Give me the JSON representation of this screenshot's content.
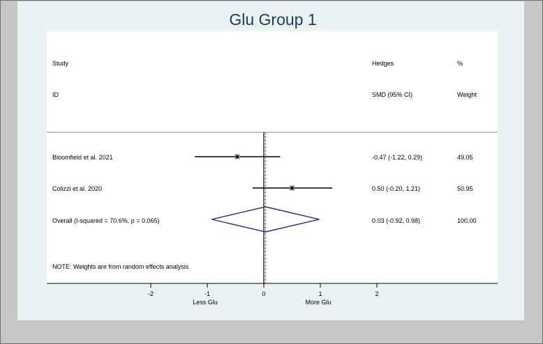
{
  "chart_data": {
    "type": "forest",
    "title": "Glu Group 1",
    "headers": {
      "study_line1": "Study",
      "study_line2": "ID",
      "effect_line1": "Hedges",
      "effect_line2": "SMD (95% CI)",
      "weight_line1": "%",
      "weight_line2": "Weight"
    },
    "studies": [
      {
        "label": "Bloomfield et al. 2021",
        "estimate": -0.47,
        "lower": -1.22,
        "upper": 0.29,
        "ci_text": "-0.47 (-1.22, 0.29)",
        "weight_text": "49.05"
      },
      {
        "label": "Colizzi et al. 2020",
        "estimate": 0.5,
        "lower": -0.2,
        "upper": 1.21,
        "ci_text": "0.50 (-0.20, 1.21)",
        "weight_text": "50.95"
      }
    ],
    "overall": {
      "label": "Overall  (I-squared = 70.6%, p = 0.065)",
      "estimate": 0.03,
      "lower": -0.92,
      "upper": 0.98,
      "ci_text": "0.03 (-0.92, 0.98)",
      "weight_text": "100.00"
    },
    "note": "NOTE: Weights are from random effects analysis",
    "x_ticks": [
      -2,
      -1,
      0,
      1,
      2
    ],
    "x_tick_labels": [
      "-2",
      "-1",
      "0",
      "1",
      "2"
    ],
    "xlim": [
      -2,
      2
    ],
    "direction_labels": {
      "left": "Less Glu",
      "right": "More Glu"
    },
    "colors": {
      "title": "#1e3a5f",
      "diamond": "#1a237e",
      "overall_line": "#c0392b",
      "null_line": "#000000"
    }
  }
}
